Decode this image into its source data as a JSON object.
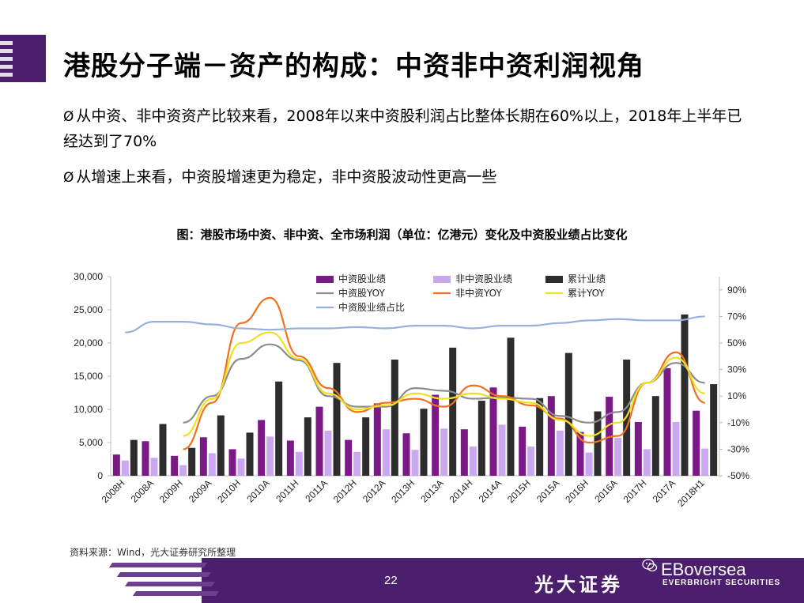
{
  "header": {
    "title": "港股分子端－资产的构成：中资非中资利润视角"
  },
  "bullets": [
    {
      "marker": "Ø",
      "text": "从中资、非中资资产比较来看，2008年以来中资股利润占比整体长期在60%以上，2018年上半年已经达到了70%"
    },
    {
      "marker": "Ø",
      "text": "从增速上来看，中资股增速更为稳定，非中资股波动性更高一些"
    }
  ],
  "chart_caption": "图：港股市场中资、非中资、全市场利润（单位：亿港元）变化及中资股业绩占比变化",
  "source": "资料来源：Wind，光大证券研究所整理",
  "footer": {
    "page_number": "22",
    "brand_cn": "光大证券",
    "brand_en": "EVERBRIGHT SECURITIES",
    "watermark": "EBoversea"
  },
  "chart_data": {
    "type": "bar",
    "categories": [
      "2008H",
      "2008A",
      "2009H",
      "2009A",
      "2010H",
      "2010A",
      "2011H",
      "2011A",
      "2012H",
      "2012A",
      "2013H",
      "2013A",
      "2014H",
      "2014A",
      "2015H",
      "2015A",
      "2016H",
      "2016A",
      "2017H",
      "2017A",
      "2018H1"
    ],
    "ylim": [
      0,
      30000
    ],
    "y2lim": [
      -50,
      100
    ],
    "y_ticks": [
      "0",
      "5,000",
      "10,000",
      "15,000",
      "20,000",
      "25,000",
      "30,000"
    ],
    "y2_ticks": [
      "-50%",
      "-30%",
      "-10%",
      "10%",
      "30%",
      "50%",
      "70%",
      "90%"
    ],
    "series": [
      {
        "name": "中资股业绩",
        "axis": "left",
        "kind": "bar",
        "color": "#7b1a86",
        "values": [
          3200,
          5200,
          3000,
          5800,
          4000,
          8400,
          5300,
          10400,
          5400,
          10900,
          6400,
          12200,
          7000,
          13300,
          7400,
          12000,
          6600,
          11900,
          8100,
          16200,
          9800
        ]
      },
      {
        "name": "非中资股业绩",
        "axis": "left",
        "kind": "bar",
        "color": "#c9a8f0",
        "values": [
          2300,
          2700,
          1600,
          3400,
          2600,
          5900,
          3600,
          6800,
          3600,
          7000,
          3900,
          7100,
          4400,
          7700,
          4400,
          6800,
          3500,
          5700,
          4000,
          8100,
          4100
        ]
      },
      {
        "name": "累计业绩",
        "axis": "left",
        "kind": "bar",
        "color": "#2d2d2d",
        "values": [
          5400,
          7800,
          4200,
          9100,
          6500,
          14200,
          8800,
          17000,
          8800,
          17500,
          10100,
          19300,
          11300,
          20800,
          11700,
          18500,
          9700,
          17500,
          12000,
          24300,
          13800
        ]
      },
      {
        "name": "中资股YOY",
        "axis": "right",
        "kind": "line",
        "color": "#8c8c8c",
        "values": [
          null,
          null,
          -10,
          10,
          38,
          49,
          37,
          10,
          2,
          2,
          16,
          14,
          8,
          9,
          8,
          -5,
          -10,
          -2,
          20,
          35,
          20
        ]
      },
      {
        "name": "非中资YOY",
        "axis": "right",
        "kind": "line",
        "color": "#f07020",
        "values": [
          null,
          null,
          -30,
          5,
          65,
          84,
          40,
          16,
          -2,
          5,
          8,
          2,
          18,
          10,
          3,
          -7,
          -25,
          -20,
          20,
          43,
          5
        ]
      },
      {
        "name": "累计YOY",
        "axis": "right",
        "kind": "line",
        "color": "#f0e020",
        "values": [
          null,
          null,
          -20,
          8,
          50,
          58,
          38,
          12,
          0,
          3,
          12,
          8,
          12,
          8,
          5,
          -8,
          -20,
          -10,
          20,
          39,
          12
        ]
      },
      {
        "name": "中资股业绩占比",
        "axis": "right",
        "kind": "line",
        "color": "#9ab0dc",
        "values": [
          58,
          66,
          66,
          64,
          61,
          60,
          61,
          61,
          62,
          61,
          63,
          63,
          61,
          63,
          63,
          65,
          67,
          68,
          67,
          67,
          70
        ]
      }
    ]
  }
}
